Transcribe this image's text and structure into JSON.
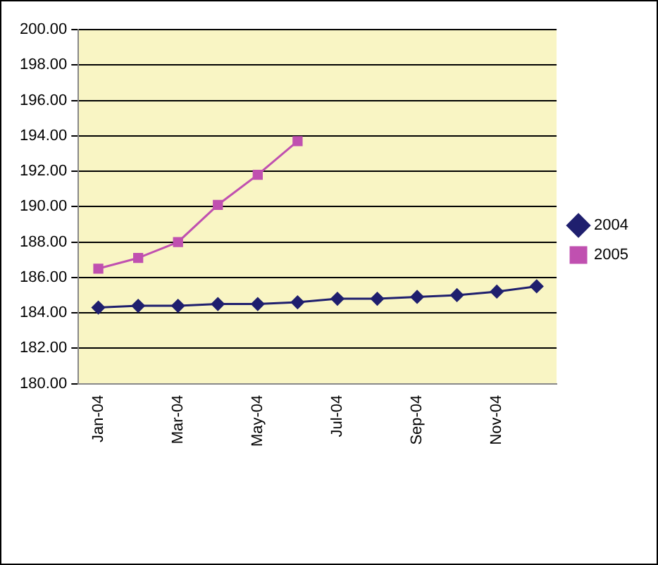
{
  "chart_data": {
    "type": "line",
    "categories": [
      "Jan-04",
      null,
      "Mar-04",
      null,
      "May-04",
      null,
      "Jul-04",
      null,
      "Sep-04",
      null,
      "Nov-04",
      null
    ],
    "series": [
      {
        "name": "2004",
        "color": "#1f1f6e",
        "marker": "diamond",
        "values": [
          184.3,
          184.4,
          184.4,
          184.5,
          184.5,
          184.6,
          184.8,
          184.8,
          184.9,
          185.0,
          185.2,
          185.5
        ]
      },
      {
        "name": "2005",
        "color": "#c050b0",
        "marker": "square",
        "values": [
          186.5,
          187.1,
          188.0,
          190.1,
          191.8,
          193.7,
          null,
          null,
          null,
          null,
          null,
          null
        ]
      }
    ],
    "ylim": [
      180,
      200
    ],
    "yticks": [
      {
        "value": 180,
        "label": "180.00"
      },
      {
        "value": 182,
        "label": "182.00"
      },
      {
        "value": 184,
        "label": "184.00"
      },
      {
        "value": 186,
        "label": "186.00"
      },
      {
        "value": 188,
        "label": "188.00"
      },
      {
        "value": 190,
        "label": "190.00"
      },
      {
        "value": 192,
        "label": "192.00"
      },
      {
        "value": 194,
        "label": "194.00"
      },
      {
        "value": 196,
        "label": "196.00"
      },
      {
        "value": 198,
        "label": "198.00"
      },
      {
        "value": 200,
        "label": "200.00"
      }
    ],
    "grid": "y",
    "legend": "right"
  }
}
